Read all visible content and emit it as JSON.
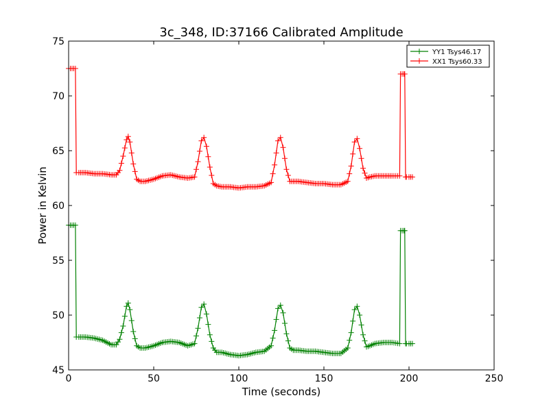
{
  "chart_data": {
    "type": "line",
    "title": "3c_348, ID:37166 Calibrated Amplitude",
    "xlabel": "Time (seconds)",
    "ylabel": "Power in Kelvin",
    "xlim": [
      0,
      250
    ],
    "ylim": [
      45,
      75
    ],
    "xticks": [
      0,
      50,
      100,
      150,
      200,
      250
    ],
    "yticks": [
      45,
      50,
      55,
      60,
      65,
      70,
      75
    ],
    "grid": false,
    "legend_position": "top-right",
    "series": [
      {
        "name": "YY1 Tsys46.17",
        "color": "#008000",
        "marker": "+",
        "x": [
          0,
          2,
          4,
          4.5,
          6,
          10,
          15,
          20,
          25,
          28,
          30,
          32,
          34,
          35,
          36,
          38,
          40,
          42,
          45,
          50,
          55,
          60,
          65,
          70,
          74,
          76,
          78,
          79.5,
          81,
          83,
          85,
          87,
          90,
          95,
          100,
          105,
          110,
          115,
          119,
          121,
          123,
          124.5,
          126,
          128,
          130,
          132,
          135,
          140,
          145,
          150,
          155,
          160,
          164,
          166,
          168,
          169.5,
          171,
          173,
          175,
          177,
          180,
          185,
          190,
          194.5,
          195,
          196,
          197,
          197.5,
          198,
          198.5,
          200,
          202
        ],
        "y": [
          58.2,
          58.2,
          58.2,
          48,
          48,
          48,
          47.9,
          47.7,
          47.3,
          47.3,
          47.8,
          49,
          50.8,
          51.1,
          50.5,
          48.5,
          47.2,
          47,
          47,
          47.2,
          47.5,
          47.6,
          47.5,
          47.2,
          47.4,
          48.8,
          50.7,
          51,
          50.1,
          48.2,
          47,
          46.6,
          46.6,
          46.4,
          46.3,
          46.4,
          46.6,
          46.7,
          47.2,
          48.6,
          50.6,
          50.9,
          50.2,
          48.3,
          47,
          46.8,
          46.8,
          46.7,
          46.7,
          46.6,
          46.5,
          46.5,
          47,
          48.4,
          50.5,
          50.8,
          50,
          48.2,
          47.1,
          47.2,
          47.4,
          47.5,
          47.5,
          47.4,
          57.7,
          57.7,
          57.7,
          57.7,
          47.4,
          47.4,
          47.4,
          47.4
        ]
      },
      {
        "name": "XX1 Tsys60.33",
        "color": "#ff0000",
        "marker": "+",
        "x": [
          0,
          2,
          4,
          4.5,
          6,
          10,
          15,
          20,
          25,
          28,
          30,
          32,
          34,
          35,
          36,
          38,
          40,
          42,
          45,
          50,
          55,
          60,
          65,
          70,
          74,
          76,
          78,
          79.5,
          81,
          83,
          85,
          87,
          90,
          95,
          100,
          105,
          110,
          115,
          119,
          121,
          123,
          124.5,
          126,
          128,
          130,
          132,
          135,
          140,
          145,
          150,
          155,
          160,
          164,
          166,
          168,
          169.5,
          171,
          173,
          175,
          177,
          180,
          185,
          190,
          194.5,
          195,
          196,
          197,
          197.5,
          198,
          198.5,
          200,
          202
        ],
        "y": [
          72.5,
          72.5,
          72.5,
          63,
          63,
          63,
          62.9,
          62.9,
          62.8,
          62.8,
          63.2,
          64.5,
          66,
          66.3,
          65.8,
          63.8,
          62.4,
          62.2,
          62.2,
          62.4,
          62.7,
          62.8,
          62.6,
          62.5,
          62.6,
          64,
          65.9,
          66.2,
          65.4,
          63.5,
          62,
          61.8,
          61.7,
          61.7,
          61.6,
          61.7,
          61.7,
          61.8,
          62.1,
          63.7,
          65.9,
          66.2,
          65.3,
          63.3,
          62.2,
          62.2,
          62.2,
          62.1,
          62,
          62,
          61.9,
          61.9,
          62.2,
          63.6,
          65.8,
          66.1,
          65.2,
          63.4,
          62.5,
          62.6,
          62.7,
          62.7,
          62.7,
          62.7,
          72,
          72,
          72,
          72,
          62.6,
          62.6,
          62.6,
          62.6
        ]
      }
    ]
  }
}
